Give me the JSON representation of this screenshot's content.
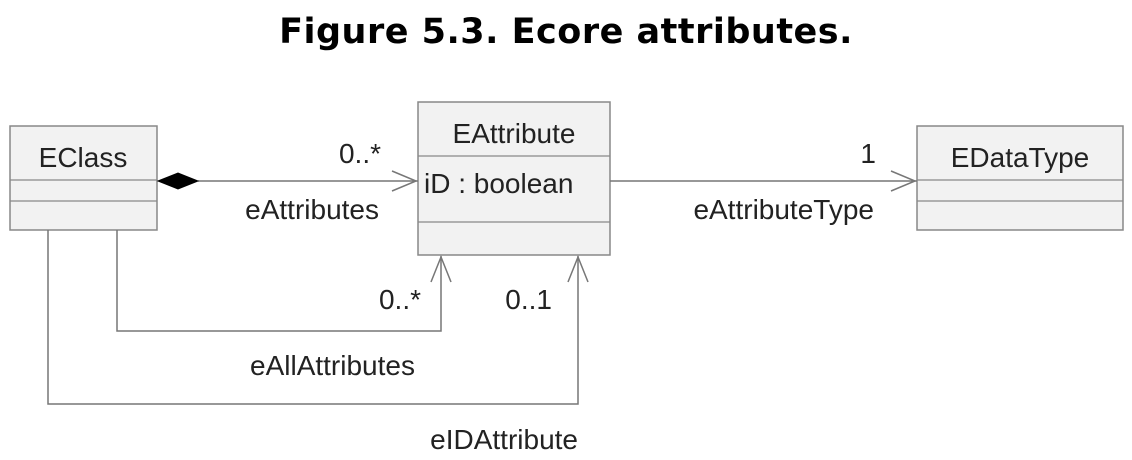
{
  "title": "Figure 5.3. Ecore attributes.",
  "classes": {
    "eclass": {
      "name": "EClass"
    },
    "eattribute": {
      "name": "EAttribute",
      "attribute": "iD : boolean"
    },
    "edatatype": {
      "name": "EDataType"
    }
  },
  "associations": {
    "eattributes": {
      "role": "eAttributes",
      "multiplicity": "0..*",
      "kind": "composition"
    },
    "eattributetype": {
      "role": "eAttributeType",
      "multiplicity": "1",
      "kind": "navigable"
    },
    "eallattributes": {
      "role": "eAllAttributes",
      "multiplicity": "0..*",
      "kind": "navigable"
    },
    "eidattribute": {
      "role": "eIDAttribute",
      "multiplicity": "0..1",
      "kind": "navigable"
    }
  },
  "colors": {
    "box_border": "#888888",
    "box_fill": "#f2f2f2",
    "line": "#777777",
    "text": "#222222"
  }
}
